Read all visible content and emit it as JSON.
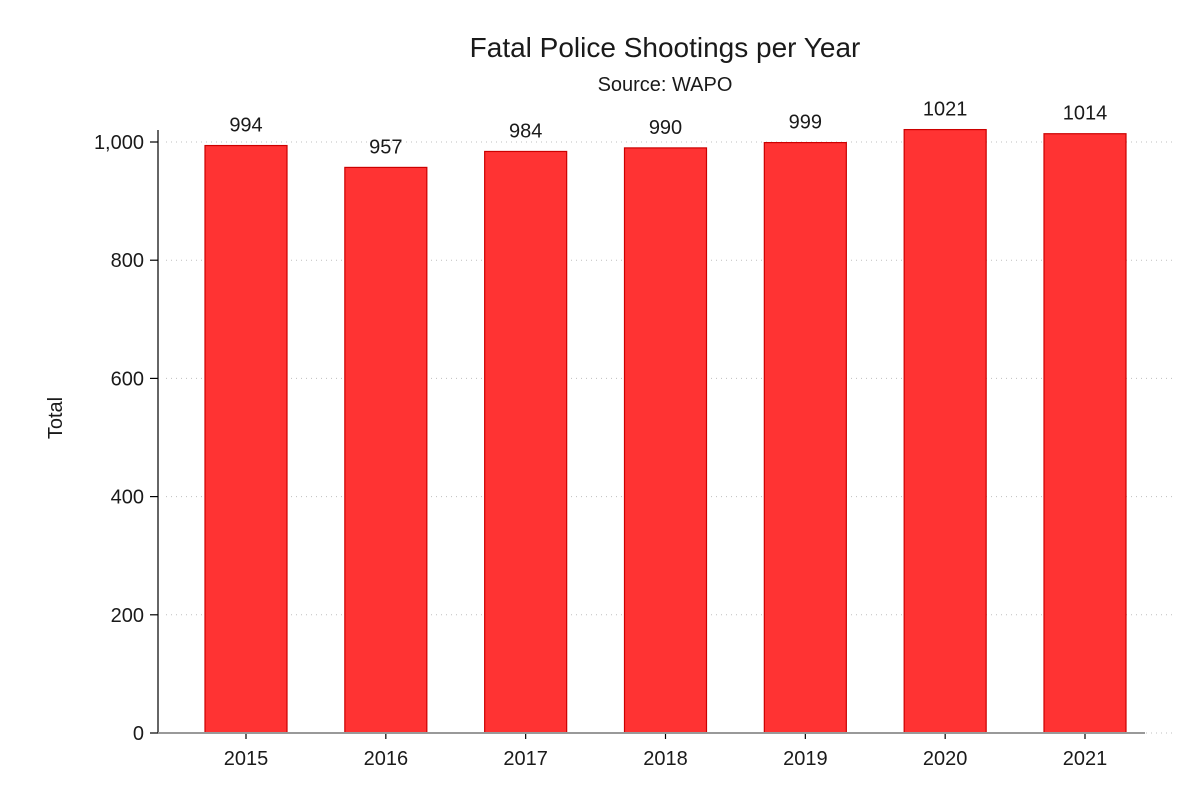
{
  "chart_data": {
    "type": "bar",
    "title": "Fatal Police Shootings per Year",
    "subtitle": "Source: WAPO",
    "xlabel": "",
    "ylabel": "Total",
    "categories": [
      "2015",
      "2016",
      "2017",
      "2018",
      "2019",
      "2020",
      "2021"
    ],
    "values": [
      994,
      957,
      984,
      990,
      999,
      1021,
      1014
    ],
    "value_labels": [
      "994",
      "957",
      "984",
      "990",
      "999",
      "1021",
      "1014"
    ],
    "ylim": [
      0,
      1000
    ],
    "yticks": [
      0,
      200,
      400,
      600,
      800,
      1000
    ],
    "ytick_labels": [
      "0",
      "200",
      "400",
      "600",
      "800",
      "1,000"
    ],
    "grid": true,
    "legend": "none",
    "colors": {
      "bar_fill": "#ff3333",
      "bar_stroke": "#cc0000"
    }
  }
}
